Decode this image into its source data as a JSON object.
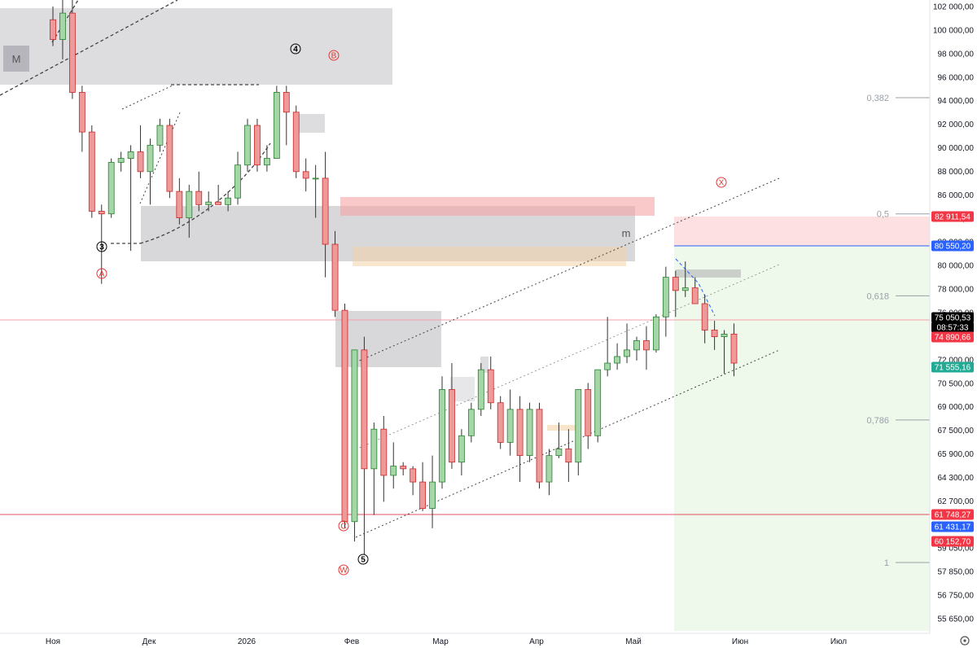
{
  "chart_data": {
    "type": "candlestick",
    "ylim": [
      55000,
      102500
    ],
    "y_ticks": [
      "102 000,00",
      "100 000,00",
      "98 000,00",
      "96 000,00",
      "94 000,00",
      "92 000,00",
      "90 000,00",
      "88 000,00",
      "86 000,00",
      "84 000,00",
      "82 000,00",
      "80 000,00",
      "78 000,00",
      "76 000,00",
      "74 000,00",
      "72 000,00",
      "70 500,00",
      "69 000,00",
      "67 500,00",
      "65 900,00",
      "64 300,00",
      "62 700,00",
      "61 100,00",
      "59 050,00",
      "57 850,00",
      "56 750,00",
      "55 650,00"
    ],
    "x_ticks": [
      "Ноя",
      "Дек",
      "2026",
      "Фев",
      "Мар",
      "Апр",
      "Май",
      "Июн",
      "Июл"
    ],
    "price_labels": [
      {
        "text": "82 911,54",
        "color": "#f23645"
      },
      {
        "text": "80 550,20",
        "color": "#2962ff"
      },
      {
        "text": "75 050,53",
        "color": "#000000"
      },
      {
        "text": "08:57:33",
        "color": "#000000"
      },
      {
        "text": "74 890,66",
        "color": "#f23645"
      },
      {
        "text": "71 555,16",
        "color": "#22ab94"
      },
      {
        "text": "61 748,27",
        "color": "#f23645"
      },
      {
        "text": "61 431,17",
        "color": "#2962ff"
      },
      {
        "text": "60 152,70",
        "color": "#f23645"
      }
    ],
    "fib_levels": [
      {
        "label": "0,382",
        "price": 95100
      },
      {
        "label": "0,5",
        "price": 86300
      },
      {
        "label": "0,618",
        "price": 80100
      },
      {
        "label": "0,786",
        "price": 70700
      },
      {
        "label": "1",
        "price": 59900
      }
    ],
    "wave_labels_red": [
      "A",
      "B",
      "C",
      "W",
      "X"
    ],
    "wave_labels_black": [
      "3",
      "4",
      "5"
    ],
    "zone_labels": [
      "M",
      "m"
    ],
    "candles": [
      [
        0,
        101000,
        102000,
        99000,
        99500
      ],
      [
        1,
        99500,
        102500,
        98000,
        101500
      ],
      [
        2,
        101500,
        102500,
        95000,
        95500
      ],
      [
        3,
        95500,
        96000,
        91000,
        92500
      ],
      [
        4,
        92500,
        93000,
        86000,
        86500
      ],
      [
        5,
        86500,
        87000,
        81000,
        86300
      ],
      [
        6,
        86300,
        90500,
        86000,
        90200
      ],
      [
        7,
        90200,
        91000,
        89500,
        90500
      ],
      [
        8,
        90500,
        91500,
        83500,
        91000
      ],
      [
        9,
        91000,
        93000,
        89000,
        89500
      ],
      [
        10,
        89500,
        92000,
        87000,
        91500
      ],
      [
        11,
        91500,
        93500,
        91000,
        93000
      ],
      [
        12,
        93000,
        93500,
        87500,
        88000
      ],
      [
        13,
        88000,
        89000,
        85500,
        86000
      ],
      [
        14,
        86000,
        88500,
        84500,
        88000
      ],
      [
        15,
        88000,
        89500,
        86500,
        87000
      ],
      [
        16,
        87000,
        88000,
        86500,
        87200
      ],
      [
        17,
        87200,
        88500,
        87000,
        87000
      ],
      [
        18,
        87000,
        88000,
        86500,
        87500
      ],
      [
        19,
        87500,
        91000,
        87000,
        90000
      ],
      [
        20,
        90000,
        93500,
        89500,
        93000
      ],
      [
        21,
        93000,
        93500,
        89500,
        90000
      ],
      [
        22,
        90000,
        91500,
        89500,
        90500
      ],
      [
        23,
        90500,
        96000,
        90500,
        95500
      ],
      [
        24,
        95500,
        96000,
        91500,
        94000
      ],
      [
        25,
        94000,
        94500,
        89000,
        89500
      ],
      [
        26,
        89500,
        90500,
        88000,
        89000
      ],
      [
        27,
        89000,
        90000,
        86000,
        89000
      ],
      [
        28,
        89000,
        91000,
        81500,
        84000
      ],
      [
        29,
        84000,
        85000,
        78500,
        79000
      ],
      [
        30,
        79000,
        79500,
        62500,
        63000
      ],
      [
        31,
        63000,
        76000,
        61500,
        76000
      ],
      [
        32,
        76000,
        77000,
        60500,
        67000
      ],
      [
        33,
        67000,
        70500,
        63500,
        70000
      ],
      [
        34,
        70000,
        71000,
        64500,
        66500
      ],
      [
        35,
        66500,
        69000,
        65500,
        67200
      ],
      [
        36,
        67200,
        67500,
        66500,
        67000
      ],
      [
        37,
        67000,
        67200,
        65000,
        66000
      ],
      [
        38,
        66000,
        67500,
        63800,
        64000
      ],
      [
        39,
        64000,
        68000,
        62500,
        66000
      ],
      [
        40,
        66000,
        74000,
        65500,
        73000
      ],
      [
        41,
        73000,
        75000,
        67000,
        67500
      ],
      [
        42,
        67500,
        70000,
        66500,
        69500
      ],
      [
        43,
        69500,
        72000,
        69000,
        71500
      ],
      [
        44,
        71500,
        75000,
        71000,
        74500
      ],
      [
        45,
        74500,
        75500,
        71500,
        72000
      ],
      [
        46,
        72000,
        72500,
        68500,
        69000
      ],
      [
        47,
        69000,
        73000,
        68000,
        71500
      ],
      [
        48,
        71500,
        72500,
        66000,
        68000
      ],
      [
        49,
        68000,
        72000,
        67500,
        71500
      ],
      [
        50,
        71500,
        72000,
        65500,
        66000
      ],
      [
        51,
        66000,
        68500,
        65000,
        68000
      ],
      [
        52,
        68000,
        70500,
        67800,
        68500
      ],
      [
        53,
        68500,
        70000,
        66000,
        67500
      ],
      [
        54,
        67500,
        73000,
        66500,
        73000
      ],
      [
        55,
        73000,
        73500,
        68500,
        69500
      ],
      [
        56,
        69500,
        74500,
        69000,
        74500
      ],
      [
        57,
        74500,
        78500,
        74000,
        75000
      ],
      [
        58,
        75000,
        76500,
        74500,
        75500
      ],
      [
        59,
        75500,
        78000,
        75000,
        76000
      ],
      [
        60,
        76000,
        77000,
        75200,
        76700
      ],
      [
        61,
        76700,
        77800,
        74500,
        76000
      ],
      [
        62,
        76000,
        78700,
        75800,
        78500
      ],
      [
        63,
        78500,
        82300,
        77000,
        81500
      ],
      [
        64,
        81500,
        82000,
        78500,
        80500
      ],
      [
        65,
        80500,
        82700,
        80000,
        80700
      ],
      [
        66,
        80700,
        81500,
        79800,
        79500
      ],
      [
        67,
        79500,
        80200,
        76500,
        77500
      ],
      [
        68,
        77500,
        78200,
        76000,
        77000
      ],
      [
        69,
        77000,
        77500,
        74200,
        77200
      ],
      [
        70,
        77200,
        78000,
        74000,
        75000
      ]
    ]
  }
}
